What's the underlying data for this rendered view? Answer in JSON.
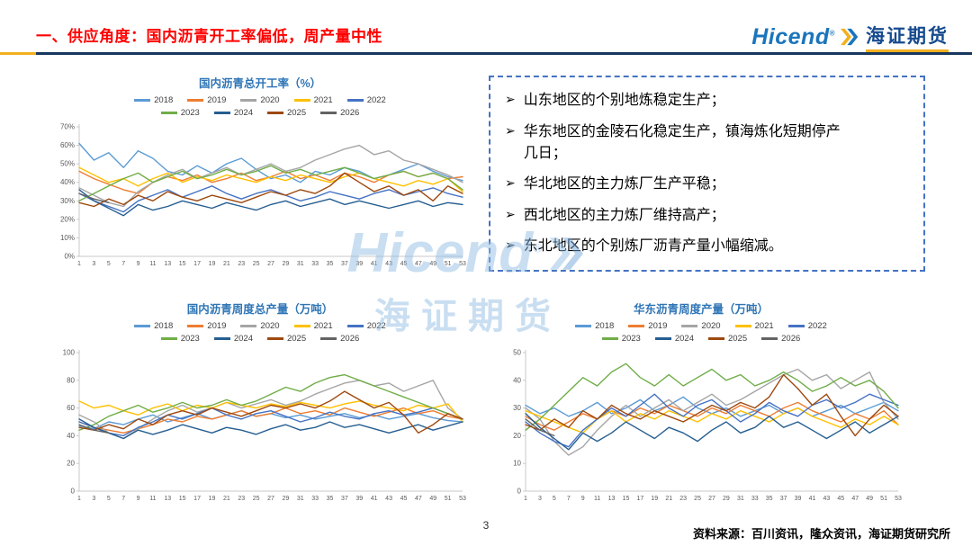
{
  "header": {
    "title": "一、供应角度：国内沥青开工率偏低，周产量中性",
    "logo": {
      "brand": "Hicend",
      "reg": "®",
      "cn": "海证期货"
    }
  },
  "notes": {
    "bullet": "➢",
    "items": [
      "山东地区的个别地炼稳定生产；",
      "华东地区的金陵石化稳定生产，镇海炼化短期停产几日；",
      "华北地区的主力炼厂生产平稳；",
      "西北地区的主力炼厂维持高产；",
      "东北地区的个别炼厂沥青产量小幅缩减。"
    ]
  },
  "watermark": {
    "brand": "Hicend",
    "reg": "®",
    "cn": "海证期货"
  },
  "footer": {
    "page_number": "3",
    "source": "资料来源：百川资讯，隆众资讯，海证期货研究所"
  },
  "chart_data": [
    {
      "type": "line",
      "title": "国内沥青总开工率（%）",
      "xlabel": "",
      "ylabel": "",
      "x": [
        1,
        3,
        5,
        7,
        9,
        11,
        13,
        15,
        17,
        19,
        21,
        23,
        25,
        27,
        29,
        31,
        33,
        35,
        37,
        39,
        41,
        43,
        45,
        47,
        49,
        51,
        53
      ],
      "ylim": [
        0,
        70
      ],
      "yticks": [
        0,
        10,
        20,
        30,
        40,
        50,
        60,
        70
      ],
      "ytick_suffix": "%",
      "grid": false,
      "legend_position": "top",
      "series": [
        {
          "name": "2018",
          "color": "#5B9BD5",
          "values": [
            61,
            52,
            56,
            48,
            57,
            53,
            46,
            44,
            49,
            45,
            50,
            53,
            47,
            42,
            44,
            40,
            46,
            44,
            48,
            46,
            42,
            44,
            47,
            50,
            46,
            43,
            41
          ]
        },
        {
          "name": "2019",
          "color": "#ED7D31",
          "values": [
            46,
            42,
            39,
            36,
            34,
            40,
            43,
            41,
            44,
            40,
            42,
            45,
            41,
            43,
            46,
            42,
            44,
            41,
            45,
            43,
            40,
            44,
            46,
            43,
            45,
            42,
            43
          ]
        },
        {
          "name": "2020",
          "color": "#A5A5A5",
          "values": [
            37,
            33,
            29,
            27,
            35,
            40,
            44,
            47,
            42,
            45,
            48,
            44,
            47,
            50,
            46,
            48,
            52,
            55,
            58,
            60,
            55,
            57,
            52,
            50,
            47,
            44,
            40
          ]
        },
        {
          "name": "2021",
          "color": "#FFC000",
          "values": [
            48,
            44,
            40,
            42,
            38,
            42,
            45,
            40,
            43,
            41,
            44,
            42,
            40,
            43,
            41,
            44,
            42,
            40,
            43,
            45,
            42,
            40,
            38,
            41,
            39,
            42,
            35
          ]
        },
        {
          "name": "2022",
          "color": "#4472C4",
          "values": [
            34,
            30,
            27,
            24,
            30,
            33,
            36,
            32,
            35,
            38,
            34,
            31,
            34,
            36,
            33,
            30,
            32,
            35,
            33,
            31,
            34,
            36,
            33,
            35,
            37,
            34,
            32
          ]
        },
        {
          "name": "2023",
          "color": "#70AD47",
          "values": [
            30,
            34,
            38,
            42,
            45,
            40,
            43,
            46,
            42,
            44,
            47,
            44,
            46,
            49,
            45,
            47,
            44,
            46,
            48,
            45,
            42,
            44,
            46,
            43,
            45,
            42,
            36
          ]
        },
        {
          "name": "2024",
          "color": "#255E91",
          "values": [
            36,
            30,
            26,
            22,
            28,
            25,
            27,
            30,
            28,
            26,
            29,
            27,
            25,
            28,
            30,
            27,
            29,
            31,
            28,
            30,
            28,
            26,
            28,
            30,
            27,
            29,
            28
          ]
        },
        {
          "name": "2025",
          "color": "#9E480E",
          "values": [
            29,
            27,
            31,
            28,
            33,
            30,
            35,
            32,
            30,
            33,
            31,
            29,
            32,
            35,
            33,
            36,
            34,
            38,
            45,
            40,
            35,
            38,
            33,
            36,
            30,
            38,
            34
          ]
        },
        {
          "name": "2026",
          "color": "#636363",
          "values": [
            34,
            31,
            29
          ]
        }
      ]
    },
    {
      "type": "line",
      "title": "国内沥青周度总产量（万吨）",
      "xlabel": "",
      "ylabel": "",
      "x": [
        1,
        3,
        5,
        7,
        9,
        11,
        13,
        15,
        17,
        19,
        21,
        23,
        25,
        27,
        29,
        31,
        33,
        35,
        37,
        39,
        41,
        43,
        45,
        47,
        49,
        51,
        53
      ],
      "ylim": [
        0,
        100
      ],
      "yticks": [
        0,
        20,
        40,
        60,
        80,
        100
      ],
      "ytick_suffix": "",
      "grid": false,
      "legend_position": "top",
      "series": [
        {
          "name": "2018",
          "color": "#5B9BD5",
          "values": [
            47,
            45,
            50,
            48,
            52,
            55,
            50,
            53,
            56,
            52,
            55,
            58,
            54,
            56,
            53,
            55,
            52,
            54,
            56,
            53,
            55,
            52,
            54,
            56,
            53,
            51,
            50
          ]
        },
        {
          "name": "2019",
          "color": "#ED7D31",
          "values": [
            50,
            46,
            44,
            42,
            45,
            48,
            52,
            50,
            54,
            52,
            55,
            58,
            54,
            56,
            60,
            56,
            58,
            55,
            60,
            57,
            54,
            57,
            60,
            56,
            58,
            54,
            52
          ]
        },
        {
          "name": "2020",
          "color": "#A5A5A5",
          "values": [
            55,
            50,
            42,
            38,
            45,
            52,
            58,
            62,
            57,
            60,
            64,
            60,
            63,
            66,
            62,
            65,
            70,
            74,
            78,
            80,
            76,
            78,
            72,
            76,
            80,
            60,
            52
          ]
        },
        {
          "name": "2021",
          "color": "#FFC000",
          "values": [
            65,
            60,
            62,
            58,
            55,
            60,
            63,
            58,
            62,
            60,
            64,
            62,
            60,
            63,
            61,
            64,
            62,
            60,
            63,
            65,
            62,
            60,
            58,
            62,
            60,
            63,
            50
          ]
        },
        {
          "name": "2022",
          "color": "#4472C4",
          "values": [
            50,
            46,
            42,
            40,
            46,
            50,
            55,
            52,
            56,
            60,
            55,
            52,
            56,
            58,
            54,
            50,
            53,
            57,
            54,
            52,
            56,
            58,
            55,
            57,
            60,
            56,
            52
          ]
        },
        {
          "name": "2023",
          "color": "#70AD47",
          "values": [
            44,
            48,
            54,
            58,
            62,
            57,
            60,
            64,
            60,
            62,
            66,
            62,
            65,
            70,
            75,
            72,
            78,
            82,
            84,
            80,
            76,
            72,
            68,
            64,
            60,
            56,
            52
          ]
        },
        {
          "name": "2024",
          "color": "#255E91",
          "values": [
            52,
            46,
            42,
            38,
            44,
            41,
            44,
            48,
            45,
            42,
            46,
            44,
            41,
            45,
            48,
            44,
            46,
            50,
            46,
            48,
            45,
            42,
            45,
            48,
            44,
            47,
            50
          ]
        },
        {
          "name": "2025",
          "color": "#9E480E",
          "values": [
            46,
            44,
            48,
            45,
            52,
            48,
            55,
            58,
            55,
            60,
            57,
            54,
            58,
            62,
            60,
            63,
            60,
            65,
            72,
            66,
            60,
            64,
            55,
            42,
            48,
            56,
            52
          ]
        },
        {
          "name": "2026",
          "color": "#636363",
          "values": [
            48,
            44,
            42
          ]
        }
      ]
    },
    {
      "type": "line",
      "title": "华东沥青周度产量（万吨）",
      "xlabel": "",
      "ylabel": "",
      "x": [
        1,
        3,
        5,
        7,
        9,
        11,
        13,
        15,
        17,
        19,
        21,
        23,
        25,
        27,
        29,
        31,
        33,
        35,
        37,
        39,
        41,
        43,
        45,
        47,
        49,
        51,
        53
      ],
      "ylim": [
        0,
        50
      ],
      "yticks": [
        0,
        10,
        20,
        30,
        40,
        50
      ],
      "ytick_suffix": "",
      "grid": false,
      "legend_position": "top",
      "series": [
        {
          "name": "2018",
          "color": "#5B9BD5",
          "values": [
            31,
            28,
            30,
            27,
            29,
            32,
            28,
            30,
            33,
            29,
            31,
            34,
            30,
            28,
            30,
            27,
            29,
            31,
            28,
            30,
            27,
            29,
            31,
            28,
            30,
            32,
            29
          ]
        },
        {
          "name": "2019",
          "color": "#ED7D31",
          "values": [
            27,
            24,
            22,
            25,
            28,
            26,
            29,
            27,
            30,
            28,
            31,
            29,
            27,
            30,
            28,
            31,
            29,
            27,
            30,
            32,
            29,
            27,
            25,
            28,
            26,
            29,
            24
          ]
        },
        {
          "name": "2020",
          "color": "#A5A5A5",
          "values": [
            30,
            26,
            18,
            13,
            16,
            22,
            27,
            31,
            27,
            30,
            33,
            29,
            32,
            35,
            31,
            33,
            36,
            39,
            42,
            44,
            40,
            42,
            37,
            40,
            43,
            32,
            26
          ]
        },
        {
          "name": "2021",
          "color": "#FFC000",
          "values": [
            29,
            27,
            25,
            23,
            21,
            26,
            29,
            25,
            28,
            26,
            29,
            27,
            25,
            28,
            26,
            29,
            27,
            25,
            28,
            30,
            27,
            25,
            23,
            26,
            24,
            27,
            24
          ]
        },
        {
          "name": "2022",
          "color": "#4472C4",
          "values": [
            25,
            21,
            18,
            16,
            22,
            26,
            30,
            27,
            31,
            35,
            30,
            27,
            31,
            33,
            29,
            25,
            28,
            32,
            29,
            27,
            31,
            33,
            30,
            32,
            35,
            33,
            31
          ]
        },
        {
          "name": "2023",
          "color": "#70AD47",
          "values": [
            22,
            26,
            31,
            36,
            41,
            38,
            43,
            46,
            41,
            38,
            42,
            38,
            41,
            44,
            40,
            42,
            38,
            40,
            43,
            40,
            36,
            38,
            41,
            38,
            40,
            36,
            30
          ]
        },
        {
          "name": "2024",
          "color": "#255E91",
          "values": [
            28,
            23,
            19,
            15,
            21,
            18,
            21,
            25,
            22,
            19,
            23,
            21,
            18,
            22,
            25,
            21,
            23,
            27,
            23,
            25,
            22,
            19,
            22,
            25,
            21,
            24,
            27
          ]
        },
        {
          "name": "2025",
          "color": "#9E480E",
          "values": [
            24,
            22,
            26,
            23,
            29,
            26,
            31,
            28,
            26,
            29,
            27,
            25,
            28,
            31,
            29,
            32,
            30,
            34,
            42,
            37,
            31,
            35,
            27,
            20,
            26,
            31,
            27
          ]
        },
        {
          "name": "2026",
          "color": "#636363",
          "values": [
            26,
            22,
            20
          ]
        }
      ]
    }
  ]
}
